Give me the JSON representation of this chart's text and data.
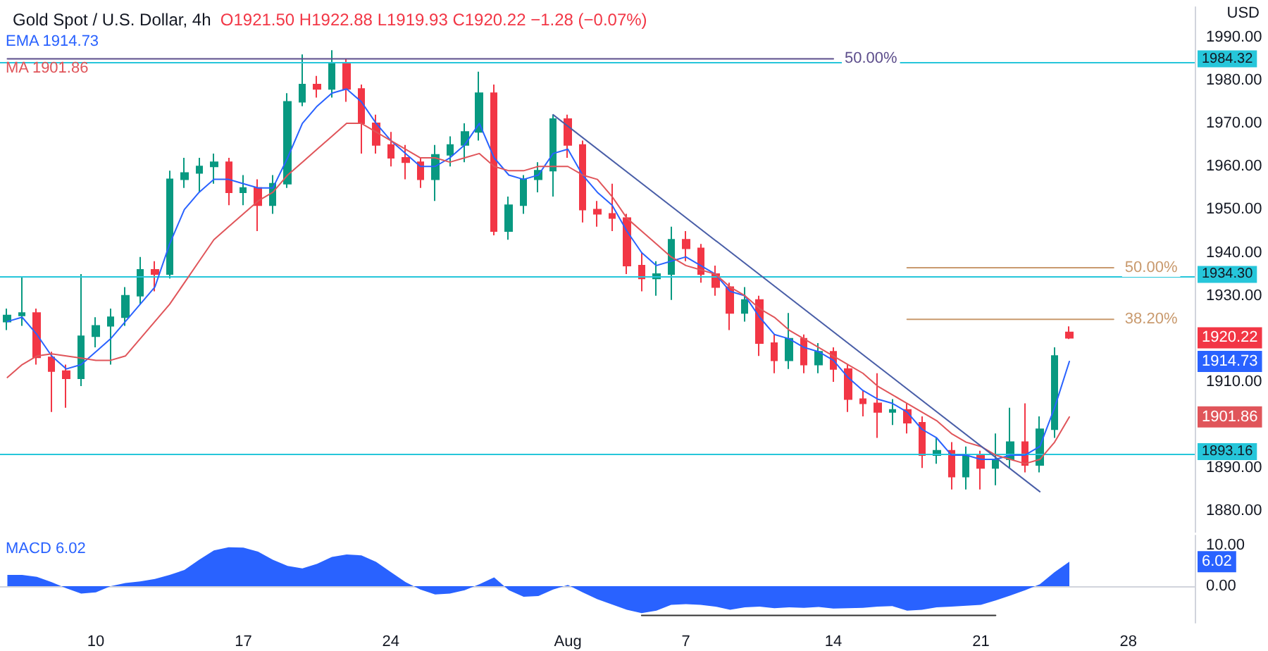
{
  "chart_data": [
    {
      "type": "candlestick",
      "title": "Gold Spot / U.S. Dollar, 4h",
      "ylabel": "USD",
      "tick_labels": "y",
      "annotations": [
        "O1921.50 H1922.88 L1919.93 C1920.22 −1.28 (−0.07%)",
        "1920.22",
        "1914.73",
        "1901.86"
      ],
      "categories": [
        null,
        null,
        null,
        null,
        null,
        null,
        null,
        null,
        null,
        null,
        null,
        null,
        null,
        null,
        null,
        null,
        null,
        null,
        null,
        null,
        null,
        null,
        null,
        null,
        null,
        null,
        null,
        null,
        null,
        null,
        null,
        null,
        null,
        null,
        null,
        null,
        null,
        null,
        null,
        null,
        null,
        null,
        null,
        null,
        null,
        null,
        null,
        null,
        null,
        null,
        null,
        null,
        null,
        null,
        null,
        null,
        null,
        null,
        null,
        null,
        null,
        null,
        null,
        null,
        null,
        null,
        null,
        null,
        null,
        null,
        null,
        null,
        null,
        null,
        null,
        null,
        null,
        null,
        null,
        null,
        null
      ],
      "ohlc": [
        [
          1924,
          1927,
          1922,
          1925.4
        ],
        [
          1925.4,
          1934.5,
          1923,
          1926
        ],
        [
          1926,
          1927,
          1914,
          1915.7
        ],
        [
          1915.7,
          1917,
          1903,
          1912.5
        ],
        [
          1912.5,
          1914,
          1904,
          1910.8
        ],
        [
          1910.8,
          1935,
          1909,
          1920.6
        ],
        [
          1920.6,
          1925,
          1918,
          1923
        ],
        [
          1923,
          1927,
          1914,
          1925
        ],
        [
          1925,
          1932,
          1923,
          1930
        ],
        [
          1930,
          1939,
          1928,
          1936
        ],
        [
          1936,
          1938,
          1931,
          1935
        ],
        [
          1935,
          1959,
          1934,
          1957
        ],
        [
          1957,
          1962,
          1955,
          1958.5
        ],
        [
          1958.5,
          1962,
          1954,
          1960
        ],
        [
          1960,
          1963,
          1956,
          1961
        ],
        [
          1961,
          1962,
          1951,
          1954
        ],
        [
          1954,
          1958,
          1951,
          1955
        ],
        [
          1955,
          1957,
          1945,
          1951
        ],
        [
          1951,
          1958,
          1949,
          1956
        ],
        [
          1956,
          1977,
          1955,
          1975
        ],
        [
          1975,
          1986,
          1974,
          1979
        ],
        [
          1979,
          1981,
          1976,
          1978
        ],
        [
          1978,
          1987,
          1976,
          1984
        ],
        [
          1984,
          1985,
          1975,
          1978
        ],
        [
          1978,
          1979,
          1963,
          1970
        ],
        [
          1970,
          1972,
          1963,
          1965
        ],
        [
          1965,
          1968,
          1960,
          1962
        ],
        [
          1962,
          1965,
          1957,
          1961
        ],
        [
          1961,
          1962,
          1955,
          1957
        ],
        [
          1957,
          1965,
          1952,
          1962.7
        ],
        [
          1962.7,
          1967,
          1960,
          1965
        ],
        [
          1965,
          1970,
          1961,
          1968
        ],
        [
          1968,
          1982,
          1966,
          1977
        ],
        [
          1977,
          1979,
          1944,
          1945
        ],
        [
          1945,
          1953,
          1943,
          1951
        ],
        [
          1951,
          1958,
          1949,
          1957
        ],
        [
          1957,
          1961,
          1954,
          1959
        ],
        [
          1959,
          1972,
          1953,
          1971
        ],
        [
          1971,
          1972,
          1962,
          1965
        ],
        [
          1965,
          1966,
          1947,
          1950
        ],
        [
          1950,
          1952,
          1946,
          1949
        ],
        [
          1949,
          1956,
          1945,
          1948
        ],
        [
          1948,
          1949,
          1935,
          1937
        ],
        [
          1937,
          1940,
          1931,
          1934
        ],
        [
          1934,
          1938,
          1930,
          1935
        ],
        [
          1935,
          1946,
          1929,
          1943
        ],
        [
          1943,
          1945,
          1938,
          1941
        ],
        [
          1941,
          1942,
          1933,
          1935
        ],
        [
          1935,
          1937,
          1930,
          1932
        ],
        [
          1932,
          1933,
          1922,
          1926
        ],
        [
          1926,
          1932,
          1924,
          1929
        ],
        [
          1929,
          1930,
          1916,
          1919
        ],
        [
          1919,
          1921,
          1912,
          1915
        ],
        [
          1915,
          1926,
          1913,
          1920
        ],
        [
          1920,
          1921,
          1912,
          1914
        ],
        [
          1914,
          1919,
          1912,
          1917
        ],
        [
          1917,
          1918,
          1910,
          1913
        ],
        [
          1913,
          1914,
          1903,
          1906
        ],
        [
          1906,
          1908,
          1902,
          1905
        ],
        [
          1905,
          1912,
          1897,
          1903
        ],
        [
          1903,
          1906,
          1900,
          1903.5
        ],
        [
          1903.5,
          1905,
          1898,
          1900.5
        ],
        [
          1900.5,
          1902,
          1890,
          1893
        ],
        [
          1893,
          1897,
          1891,
          1894
        ],
        [
          1894,
          1896,
          1885,
          1888
        ],
        [
          1888,
          1895,
          1885,
          1893
        ],
        [
          1893,
          1894,
          1885,
          1890
        ],
        [
          1890,
          1898,
          1886,
          1892
        ],
        [
          1892,
          1904,
          1890,
          1896
        ],
        [
          1896,
          1905,
          1889,
          1890.7
        ],
        [
          1890.7,
          1902,
          1889,
          1899
        ],
        [
          1899,
          1918,
          1897,
          1916
        ],
        [
          1921.5,
          1922.88,
          1919.93,
          1920.22
        ],
        null,
        null,
        null,
        null,
        null,
        null,
        null,
        null
      ],
      "colors": [
        "#089981",
        "#089981",
        "#f23645",
        "#f23645",
        "#f23645",
        "#089981",
        "#089981",
        "#089981",
        "#089981",
        "#089981",
        "#f23645",
        "#089981",
        "#089981",
        "#089981",
        "#089981",
        "#f23645",
        "#089981",
        "#f23645",
        "#089981",
        "#089981",
        "#089981",
        "#f23645",
        "#089981",
        "#f23645",
        "#f23645",
        "#f23645",
        "#f23645",
        "#f23645",
        "#f23645",
        "#089981",
        "#089981",
        "#089981",
        "#089981",
        "#f23645",
        "#089981",
        "#089981",
        "#089981",
        "#089981",
        "#f23645",
        "#f23645",
        "#f23645",
        "#f23645",
        "#f23645",
        "#f23645",
        "#089981",
        "#089981",
        "#f23645",
        "#f23645",
        "#f23645",
        "#f23645",
        "#089981",
        "#f23645",
        "#f23645",
        "#089981",
        "#f23645",
        "#089981",
        "#f23645",
        "#f23645",
        "#f23645",
        "#f23645",
        "#089981",
        "#f23645",
        "#f23645",
        "#089981",
        "#f23645",
        "#089981",
        "#f23645",
        "#089981",
        "#089981",
        "#f23645",
        "#089981",
        "#089981",
        "#f23645",
        null,
        null,
        null,
        null,
        null,
        null,
        null,
        null
      ],
      "series": [
        {
          "type": "line",
          "name": "EMA 1914.73",
          "color": "#2962ff",
          "values": [
            1924,
            1925,
            1921,
            1916,
            1913,
            1914,
            1917,
            1920,
            1924,
            1928,
            1932,
            1942,
            1950,
            1954,
            1957,
            1957,
            1956,
            1955,
            1955,
            1962,
            1970,
            1974,
            1977,
            1978,
            1975,
            1970,
            1966,
            1963,
            1960,
            1960,
            1962,
            1965,
            1970,
            1962,
            1958,
            1957,
            1958,
            1963,
            1964,
            1958,
            1954,
            1951,
            1945,
            1940,
            1937,
            1938,
            1939,
            1937,
            1935,
            1931,
            1930,
            1925,
            1921,
            1920,
            1918,
            1917,
            1915,
            1911,
            1908,
            1906,
            1905,
            1903,
            1899,
            1897,
            1893,
            1893,
            1892,
            1892,
            1893,
            1893,
            1895,
            1904,
            1914.73,
            null,
            null,
            null,
            null,
            null,
            null,
            null,
            null
          ]
        },
        {
          "type": "line",
          "name": "MA 1901.86",
          "color": "#e0555a",
          "values": [
            1911,
            1914,
            1916,
            1916.5,
            1916,
            1915.5,
            1915,
            1915,
            1916,
            1920,
            1924,
            1928,
            1933,
            1938,
            1943,
            1946,
            1949,
            1952,
            1954,
            1958,
            1961,
            1964,
            1967,
            1970,
            1970,
            1968,
            1966,
            1964,
            1962,
            1962,
            1961,
            1962,
            1963,
            1960,
            1959,
            1959,
            1960,
            1960,
            1960,
            1958,
            1957,
            1953,
            1948,
            1945,
            1942,
            1939,
            1937,
            1936,
            1935,
            1932,
            1930,
            1927,
            1925,
            1922,
            1920,
            1918,
            1916,
            1914,
            1912,
            1909,
            1907,
            1905,
            1903,
            1901,
            1898,
            1896,
            1895,
            1893,
            1892,
            1891,
            1892,
            1896,
            1901.86,
            null,
            null,
            null,
            null,
            null,
            null,
            null,
            null
          ]
        },
        {
          "type": "line",
          "color": "#4a5fa8",
          "values": [
            null,
            null,
            null,
            null,
            null,
            null,
            null,
            null,
            null,
            null,
            null,
            null,
            null,
            null,
            null,
            null,
            null,
            null,
            null,
            null,
            null,
            null,
            null,
            null,
            null,
            null,
            null,
            null,
            null,
            null,
            null,
            null,
            null,
            null,
            null,
            null,
            null,
            1972,
            null,
            null,
            null,
            null,
            null,
            null,
            null,
            null,
            null,
            null,
            null,
            null,
            null,
            null,
            null,
            null,
            null,
            null,
            null,
            null,
            null,
            null,
            null,
            null,
            null,
            null,
            null,
            null,
            null,
            null,
            null,
            null,
            1884.5,
            null,
            null,
            null,
            null,
            null,
            null,
            null,
            null,
            null,
            null
          ]
        },
        {
          "type": "line",
          "name": "50.00%",
          "color": "#5d4e8c",
          "values": [
            1985,
            null,
            null,
            null,
            null,
            null,
            null,
            null,
            null,
            null,
            null,
            null,
            null,
            null,
            null,
            null,
            null,
            null,
            null,
            null,
            null,
            null,
            null,
            null,
            null,
            null,
            null,
            null,
            null,
            null,
            null,
            null,
            null,
            null,
            null,
            null,
            null,
            null,
            null,
            null,
            null,
            null,
            null,
            null,
            null,
            null,
            null,
            null,
            null,
            null,
            null,
            null,
            null,
            null,
            null,
            null,
            1985,
            null,
            null,
            null,
            null,
            null,
            null,
            null,
            null,
            null,
            null,
            null,
            null,
            null,
            null,
            null,
            null,
            null,
            null,
            null,
            null,
            null,
            null,
            null,
            null
          ]
        },
        {
          "type": "line",
          "name": "50.00%",
          "color": "#c99a6e",
          "values": [
            null,
            null,
            null,
            null,
            null,
            null,
            null,
            null,
            null,
            null,
            null,
            null,
            null,
            null,
            null,
            null,
            null,
            null,
            null,
            null,
            null,
            null,
            null,
            null,
            null,
            null,
            null,
            null,
            null,
            null,
            null,
            null,
            null,
            null,
            null,
            null,
            null,
            null,
            null,
            null,
            null,
            null,
            null,
            null,
            null,
            null,
            null,
            null,
            null,
            null,
            null,
            null,
            null,
            null,
            null,
            null,
            null,
            null,
            null,
            null,
            null,
            1936.5,
            null,
            null,
            null,
            null,
            null,
            null,
            null,
            null,
            null,
            null,
            null,
            null,
            null,
            1936.5,
            null,
            null,
            null,
            null,
            null
          ]
        },
        {
          "type": "line",
          "name": "38.20%",
          "color": "#c99a6e",
          "values": [
            null,
            null,
            null,
            null,
            null,
            null,
            null,
            null,
            null,
            null,
            null,
            null,
            null,
            null,
            null,
            null,
            null,
            null,
            null,
            null,
            null,
            null,
            null,
            null,
            null,
            null,
            null,
            null,
            null,
            null,
            null,
            null,
            null,
            null,
            null,
            null,
            null,
            null,
            null,
            null,
            null,
            null,
            null,
            null,
            null,
            null,
            null,
            null,
            null,
            null,
            null,
            null,
            null,
            null,
            null,
            null,
            null,
            null,
            null,
            null,
            null,
            1924.5,
            null,
            null,
            null,
            null,
            null,
            null,
            null,
            null,
            null,
            null,
            null,
            null,
            null,
            1924.5,
            null,
            null,
            null,
            null,
            null
          ]
        }
      ],
      "ylim": [
        1875,
        1997
      ],
      "yticks": [
        {
          "value": 1880,
          "label": "1880.00"
        },
        {
          "value": 1890,
          "label": "1890.00"
        },
        {
          "value": 1910,
          "label": "1910.00"
        },
        {
          "value": 1930,
          "label": "1930.00"
        },
        {
          "value": 1940,
          "label": "1940.00"
        },
        {
          "value": 1950,
          "label": "1950.00"
        },
        {
          "value": 1960,
          "label": "1960.00"
        },
        {
          "value": 1970,
          "label": "1970.00"
        },
        {
          "value": 1980,
          "label": "1980.00"
        },
        {
          "value": 1990,
          "label": "1990.00"
        }
      ],
      "ref_lines": [
        {
          "axis": "y",
          "value": 1984.32,
          "label": "1984.32",
          "color": "#26c6da"
        },
        {
          "axis": "y",
          "value": 1934.3,
          "label": "1934.30",
          "color": "#26c6da"
        },
        {
          "axis": "y",
          "value": 1893.16,
          "label": "1893.16",
          "color": "#26c6da"
        }
      ]
    },
    {
      "type": "area",
      "annotations": [
        "6.02"
      ],
      "categories": [
        null,
        null,
        null,
        null,
        null,
        null,
        "10",
        null,
        null,
        null,
        null,
        null,
        null,
        null,
        null,
        null,
        "17",
        null,
        null,
        null,
        null,
        null,
        null,
        null,
        null,
        null,
        "24",
        null,
        null,
        null,
        null,
        null,
        null,
        null,
        null,
        null,
        null,
        null,
        "Aug",
        null,
        null,
        null,
        null,
        null,
        null,
        null,
        "7",
        null,
        null,
        null,
        null,
        null,
        null,
        null,
        null,
        null,
        "14",
        null,
        null,
        null,
        null,
        null,
        null,
        null,
        null,
        null,
        "21",
        null,
        null,
        null,
        null,
        null,
        null,
        null,
        null,
        null,
        "28",
        null,
        null,
        null,
        null
      ],
      "series": [
        {
          "name": "MACD 6.02",
          "color": "#2962ff",
          "values": [
            2.8,
            2.8,
            2.3,
            1.0,
            -0.5,
            -1.8,
            -1.5,
            0.0,
            0.8,
            1.2,
            1.8,
            2.8,
            4.0,
            6.5,
            8.8,
            9.6,
            9.5,
            8.5,
            6.5,
            5.0,
            4.4,
            5.5,
            7.2,
            7.8,
            7.6,
            6.0,
            3.5,
            1.0,
            -0.8,
            -2.0,
            -1.8,
            -1.0,
            0.5,
            2.2,
            -1.0,
            -2.6,
            -2.4,
            -0.8,
            0.3,
            -1.5,
            -3.2,
            -4.5,
            -5.8,
            -6.6,
            -6.0,
            -4.6,
            -4.4,
            -4.6,
            -5.0,
            -5.8,
            -5.2,
            -5.0,
            -5.4,
            -5.2,
            -5.3,
            -5.1,
            -5.5,
            -5.4,
            -5.3,
            -5.0,
            -4.9,
            -6.0,
            -5.8,
            -5.2,
            -5.0,
            -4.8,
            -4.6,
            -3.5,
            -2.3,
            -1.0,
            0.5,
            3.5,
            6.02,
            null,
            null,
            null,
            null,
            null,
            null,
            null,
            null
          ]
        },
        {
          "type": "line",
          "color": "#333333",
          "values": [
            null,
            null,
            null,
            null,
            null,
            null,
            null,
            null,
            null,
            null,
            null,
            null,
            null,
            null,
            null,
            null,
            null,
            null,
            null,
            null,
            null,
            null,
            null,
            null,
            null,
            null,
            null,
            null,
            null,
            null,
            null,
            null,
            null,
            null,
            null,
            null,
            null,
            null,
            null,
            null,
            null,
            null,
            null,
            -7.2,
            null,
            null,
            null,
            null,
            null,
            null,
            null,
            null,
            null,
            null,
            null,
            null,
            null,
            null,
            null,
            null,
            null,
            null,
            null,
            null,
            null,
            null,
            null,
            -7.2,
            null,
            null,
            null,
            null,
            null,
            null,
            null,
            null,
            null,
            null,
            null,
            null,
            null
          ]
        }
      ],
      "ylim": [
        -9,
        12.5
      ],
      "yticks": [
        {
          "value": 0,
          "label": "0.00"
        },
        {
          "value": 10,
          "label": "10.00"
        }
      ]
    }
  ]
}
